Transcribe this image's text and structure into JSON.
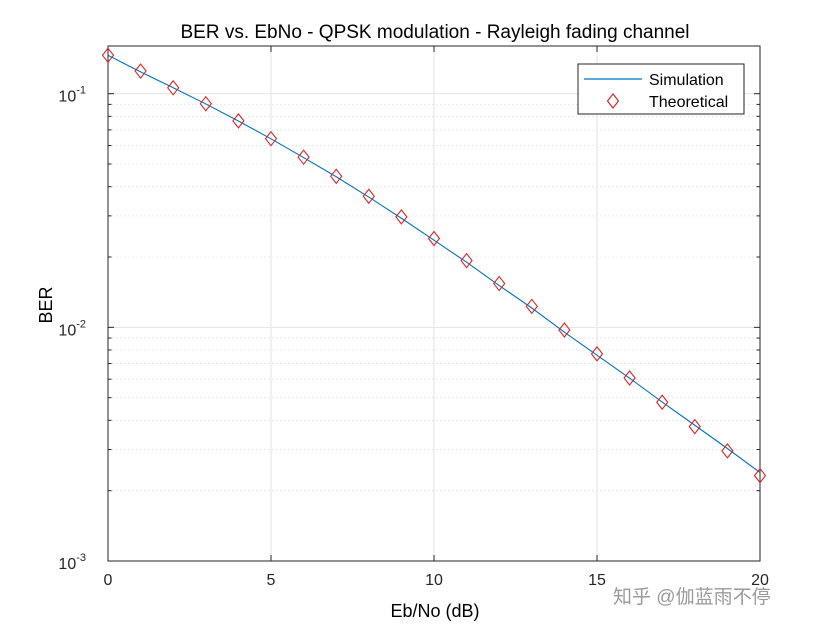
{
  "chart_data": {
    "type": "line",
    "title": "BER vs. EbNo - QPSK modulation - Rayleigh fading channel",
    "xlabel": "Eb/No (dB)",
    "ylabel": "BER",
    "xlim": [
      0,
      20
    ],
    "ylim": [
      0.001,
      0.16
    ],
    "yscale": "log",
    "grid": true,
    "minor_grid": true,
    "legend_position": "top-right",
    "x_ticks": [
      {
        "value": 0,
        "label": "0"
      },
      {
        "value": 5,
        "label": "5"
      },
      {
        "value": 10,
        "label": "10"
      },
      {
        "value": 15,
        "label": "15"
      },
      {
        "value": 20,
        "label": "20"
      }
    ],
    "y_ticks": [
      {
        "value": 0.1,
        "base": "10",
        "exponent": "-1"
      },
      {
        "value": 0.01,
        "base": "10",
        "exponent": "-2"
      },
      {
        "value": 0.001,
        "base": "10",
        "exponent": "-3"
      }
    ],
    "x": [
      0,
      1,
      2,
      3,
      4,
      5,
      6,
      7,
      8,
      9,
      10,
      11,
      12,
      13,
      14,
      15,
      16,
      17,
      18,
      19,
      20
    ],
    "series": [
      {
        "name": "Simulation",
        "style": "line",
        "color": "#0072BD",
        "values": [
          0.146,
          0.124,
          0.106,
          0.0904,
          0.0764,
          0.0641,
          0.0533,
          0.0441,
          0.0361,
          0.0293,
          0.0236,
          0.019,
          0.0151,
          0.0121,
          0.00954,
          0.0076,
          0.00606,
          0.00479,
          0.00381,
          0.00303,
          0.00239
        ]
      },
      {
        "name": "Theoretical",
        "style": "marker-diamond",
        "color": "#D62728",
        "values": [
          0.146,
          0.125,
          0.106,
          0.0906,
          0.0765,
          0.0642,
          0.0535,
          0.0443,
          0.0364,
          0.0297,
          0.024,
          0.0193,
          0.0154,
          0.0123,
          0.00974,
          0.0077,
          0.00607,
          0.00478,
          0.00376,
          0.00296,
          0.00232
        ]
      }
    ]
  },
  "watermark": "知乎 @伽蓝雨不停"
}
